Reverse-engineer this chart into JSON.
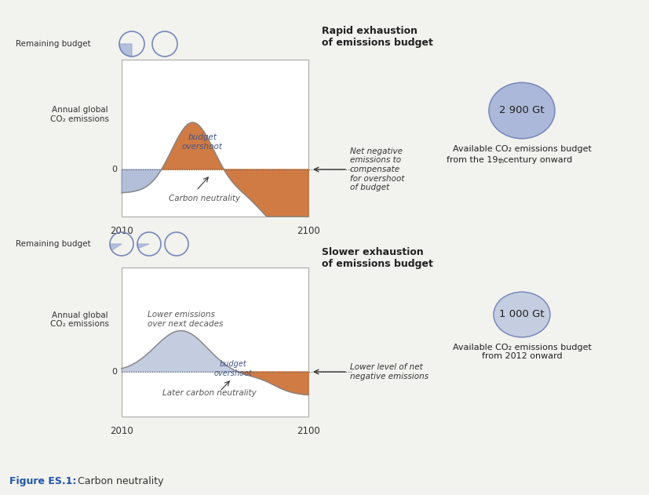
{
  "bg_color": "#f2f2ee",
  "box_color": "#ffffff",
  "box_edge_color": "#aaaaaa",
  "blue_fill": "#8b9dc3",
  "orange_fill": "#cb6d2f",
  "circle_blue_fill": "#9aaad4",
  "circle_edge": "#7788bb",
  "title_rapid": "Rapid exhaustion\nof emissions budget",
  "title_slower": "Slower exhaustion\nof emissions budget",
  "ylabel": "Annual global\nCO₂ emissions",
  "budget_2900": "2 900 Gt",
  "budget_1000": "1 000 Gt",
  "avail_text1_line1": "Available CO₂ emissions budget",
  "avail_text1_line2a": "from the 19",
  "avail_text1_line2b": "th",
  "avail_text1_line2c": " century onward",
  "avail_text2": "Available CO₂ emissions budget\nfrom 2012 onward",
  "annotation1": "Net negative\nemissions to\ncompensate\nfor overshoot\nof budget",
  "annotation2": "Lower level of net\nnegative emissions",
  "label_budget_overshoot1": "budget\novershoot",
  "label_carbon_neutrality": "Carbon neutrality",
  "label_lower_emissions": "Lower emissions\nover next decades",
  "label_budget_overshoot2": "budget\novershoot",
  "label_later_neutrality": "Later carbon neutrality",
  "remaining_budget": "Remaining budget",
  "fig_caption_bold": "Figure ES.1:",
  "fig_caption_rest": " Carbon neutrality"
}
